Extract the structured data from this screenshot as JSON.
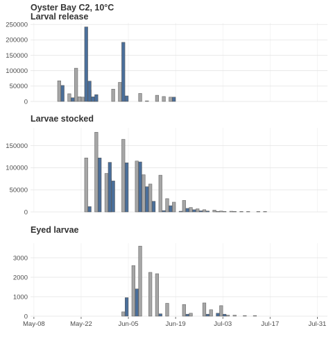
{
  "chart_data": {
    "type": "bar",
    "title": "Oyster Bay C2, 10°C",
    "x_axis": {
      "type": "date",
      "ticks": [
        "May-08",
        "May-22",
        "Jun-05",
        "Jun-19",
        "Jul-03",
        "Jul-17",
        "Jul-31"
      ],
      "tick_dates": [
        "2023-05-08",
        "2023-05-22",
        "2023-06-05",
        "2023-06-19",
        "2023-07-03",
        "2023-07-17",
        "2023-07-31"
      ],
      "range": [
        "2023-05-07",
        "2023-08-03"
      ]
    },
    "colors": {
      "gray": "#a6a6a6",
      "blue": "#4a6f9b"
    },
    "grid": true,
    "legend": "none",
    "panels": [
      {
        "title": "Larval release",
        "ylim": [
          0,
          255000
        ],
        "yticks": [
          0,
          50000,
          100000,
          150000,
          200000,
          250000
        ],
        "ytick_labels": [
          "0",
          "50000",
          "100000",
          "150000",
          "200000",
          "250000"
        ],
        "series": [
          {
            "color": "gray",
            "points": [
              [
                "2023-05-15",
                67000
              ],
              [
                "2023-05-18",
                25000
              ],
              [
                "2023-05-20",
                108000
              ],
              [
                "2023-05-21",
                15000
              ],
              [
                "2023-05-22",
                14000
              ],
              [
                "2023-05-24",
                37000
              ],
              [
                "2023-05-25",
                12000
              ],
              [
                "2023-05-26",
                10000
              ],
              [
                "2023-05-31",
                40000
              ],
              [
                "2023-06-02",
                62000
              ],
              [
                "2023-06-08",
                26000
              ],
              [
                "2023-06-10",
                2000
              ],
              [
                "2023-06-13",
                20000
              ],
              [
                "2023-06-15",
                16000
              ],
              [
                "2023-06-17",
                14000
              ]
            ]
          },
          {
            "color": "blue",
            "points": [
              [
                "2023-05-16",
                52000
              ],
              [
                "2023-05-19",
                12000
              ],
              [
                "2023-05-23",
                242000
              ],
              [
                "2023-05-24",
                66000
              ],
              [
                "2023-05-25",
                15000
              ],
              [
                "2023-05-26",
                22000
              ],
              [
                "2023-06-03",
                192000
              ],
              [
                "2023-06-04",
                18000
              ],
              [
                "2023-06-18",
                14000
              ]
            ]
          }
        ]
      },
      {
        "title": "Larvae stocked",
        "ylim": [
          0,
          190000
        ],
        "yticks": [
          0,
          50000,
          100000,
          150000
        ],
        "ytick_labels": [
          "0",
          "50000",
          "100000",
          "150000"
        ],
        "series": [
          {
            "color": "gray",
            "points": [
              [
                "2023-05-23",
                122000
              ],
              [
                "2023-05-26",
                180000
              ],
              [
                "2023-05-29",
                87000
              ],
              [
                "2023-05-30",
                75000
              ],
              [
                "2023-06-03",
                164000
              ],
              [
                "2023-06-07",
                115000
              ],
              [
                "2023-06-09",
                84000
              ],
              [
                "2023-06-11",
                63000
              ],
              [
                "2023-06-14",
                83000
              ],
              [
                "2023-06-16",
                30000
              ],
              [
                "2023-06-18",
                22000
              ],
              [
                "2023-06-21",
                26000
              ],
              [
                "2023-06-23",
                10000
              ],
              [
                "2023-06-25",
                7000
              ],
              [
                "2023-06-27",
                5000
              ],
              [
                "2023-06-30",
                4000
              ],
              [
                "2023-07-02",
                2000
              ],
              [
                "2023-07-05",
                1500
              ],
              [
                "2023-07-08",
                1000
              ],
              [
                "2023-07-10",
                800
              ],
              [
                "2023-07-13",
                500
              ],
              [
                "2023-07-15",
                300
              ]
            ]
          },
          {
            "color": "blue",
            "points": [
              [
                "2023-05-24",
                12000
              ],
              [
                "2023-05-27",
                122000
              ],
              [
                "2023-05-30",
                112000
              ],
              [
                "2023-05-31",
                70000
              ],
              [
                "2023-06-04",
                111000
              ],
              [
                "2023-06-08",
                113000
              ],
              [
                "2023-06-10",
                57000
              ],
              [
                "2023-06-12",
                24000
              ],
              [
                "2023-06-15",
                3000
              ],
              [
                "2023-06-17",
                14000
              ],
              [
                "2023-06-20",
                1500
              ],
              [
                "2023-06-22",
                8000
              ],
              [
                "2023-06-24",
                5000
              ],
              [
                "2023-06-26",
                2500
              ],
              [
                "2023-06-28",
                2000
              ],
              [
                "2023-07-01",
                1000
              ],
              [
                "2023-07-03",
                500
              ],
              [
                "2023-07-06",
                300
              ]
            ]
          }
        ]
      },
      {
        "title": "Eyed larvae",
        "ylim": [
          0,
          3750
        ],
        "yticks": [
          0,
          1000,
          2000,
          3000
        ],
        "ytick_labels": [
          "0",
          "1000",
          "2000",
          "3000"
        ],
        "series": [
          {
            "color": "gray",
            "points": [
              [
                "2023-06-03",
                220
              ],
              [
                "2023-06-06",
                2600
              ],
              [
                "2023-06-08",
                3600
              ],
              [
                "2023-06-11",
                2250
              ],
              [
                "2023-06-13",
                2180
              ],
              [
                "2023-06-16",
                660
              ],
              [
                "2023-06-21",
                600
              ],
              [
                "2023-06-23",
                150
              ],
              [
                "2023-06-27",
                680
              ],
              [
                "2023-06-29",
                330
              ],
              [
                "2023-07-02",
                540
              ],
              [
                "2023-07-04",
                50
              ],
              [
                "2023-07-06",
                50
              ],
              [
                "2023-07-09",
                30
              ],
              [
                "2023-07-12",
                30
              ]
            ]
          },
          {
            "color": "blue",
            "points": [
              [
                "2023-06-04",
                950
              ],
              [
                "2023-06-07",
                1400
              ],
              [
                "2023-06-14",
                120
              ],
              [
                "2023-06-22",
                100
              ],
              [
                "2023-06-28",
                100
              ],
              [
                "2023-07-01",
                150
              ],
              [
                "2023-07-03",
                100
              ]
            ]
          }
        ]
      }
    ]
  }
}
